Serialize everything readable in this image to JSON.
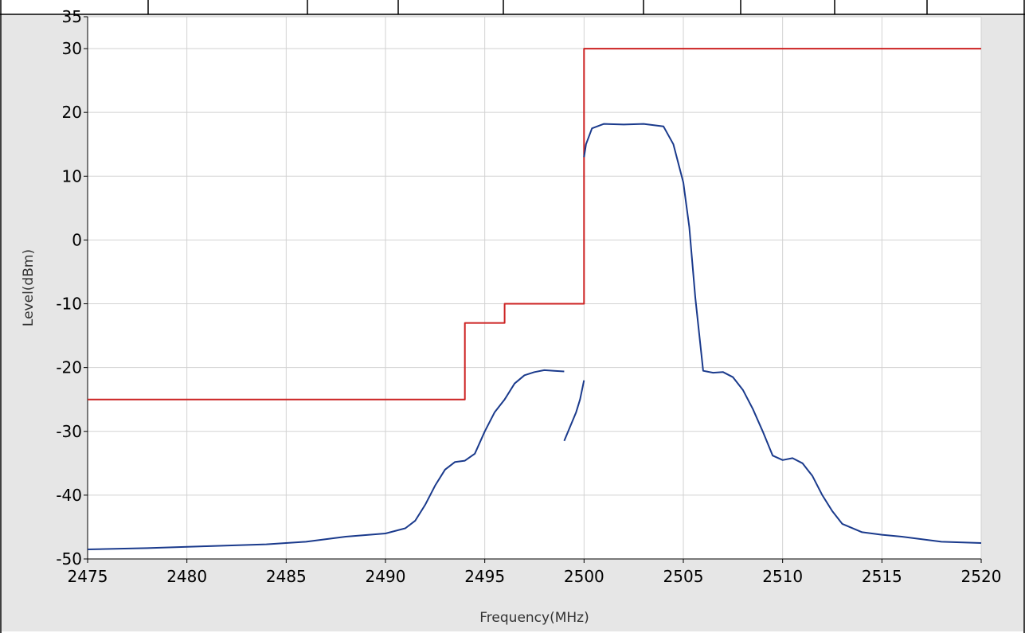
{
  "chart_data": {
    "type": "line",
    "title": "",
    "xlabel": "Frequency(MHz)",
    "ylabel": "Level(dBm)",
    "xlim": [
      2475,
      2520
    ],
    "ylim": [
      -50,
      35
    ],
    "xticks": [
      2475,
      2480,
      2485,
      2490,
      2495,
      2500,
      2505,
      2510,
      2515,
      2520
    ],
    "yticks": [
      35,
      30,
      20,
      10,
      0,
      -10,
      -20,
      -30,
      -40,
      -50
    ],
    "grid": true,
    "legend": "none",
    "series": [
      {
        "color": "#cc2222",
        "style": "step",
        "x": [
          2475,
          2494,
          2494,
          2496,
          2496,
          2500,
          2500,
          2520
        ],
        "y": [
          -25,
          -25,
          -13,
          -13,
          -10,
          -10,
          30,
          30
        ]
      },
      {
        "color": "#1a3a8c",
        "segments": [
          {
            "x": [
              2475,
              2478,
              2481,
              2484,
              2486,
              2488,
              2490,
              2491,
              2491.5,
              2492,
              2492.5,
              2493,
              2493.5,
              2494,
              2494.5,
              2495,
              2495.5,
              2496,
              2496.5,
              2497,
              2497.5,
              2498,
              2498.5,
              2499
            ],
            "y": [
              -48.5,
              -48.3,
              -48,
              -47.7,
              -47.3,
              -46.5,
              -46,
              -45.2,
              -44,
              -41.5,
              -38.5,
              -36,
              -34.8,
              -34.6,
              -33.5,
              -30,
              -27,
              -25,
              -22.5,
              -21.2,
              -20.7,
              -20.4,
              -20.5,
              -20.6
            ]
          },
          {
            "x": [
              2499,
              2499.2,
              2499.4,
              2499.6,
              2499.8,
              2500
            ],
            "y": [
              -31.5,
              -30,
              -28.5,
              -27,
              -25,
              -22
            ]
          },
          {
            "x": [
              2500,
              2500.1,
              2500.4,
              2501,
              2502,
              2503,
              2504,
              2504.5,
              2505,
              2505.3,
              2505.6,
              2506,
              2506.5,
              2507,
              2507.5,
              2508,
              2508.5,
              2509,
              2509.5,
              2510,
              2510.5,
              2511,
              2511.5,
              2512,
              2512.5,
              2513,
              2514,
              2515,
              2516,
              2518,
              2520
            ],
            "y": [
              13,
              15,
              17.5,
              18.2,
              18.1,
              18.2,
              17.8,
              15,
              9,
              2,
              -9,
              -20.5,
              -20.8,
              -20.7,
              -21.5,
              -23.5,
              -26.5,
              -30,
              -33.8,
              -34.5,
              -34.2,
              -35,
              -37,
              -40,
              -42.5,
              -44.5,
              -45.8,
              -46.2,
              -46.5,
              -47.3,
              -47.5
            ]
          }
        ]
      }
    ]
  }
}
